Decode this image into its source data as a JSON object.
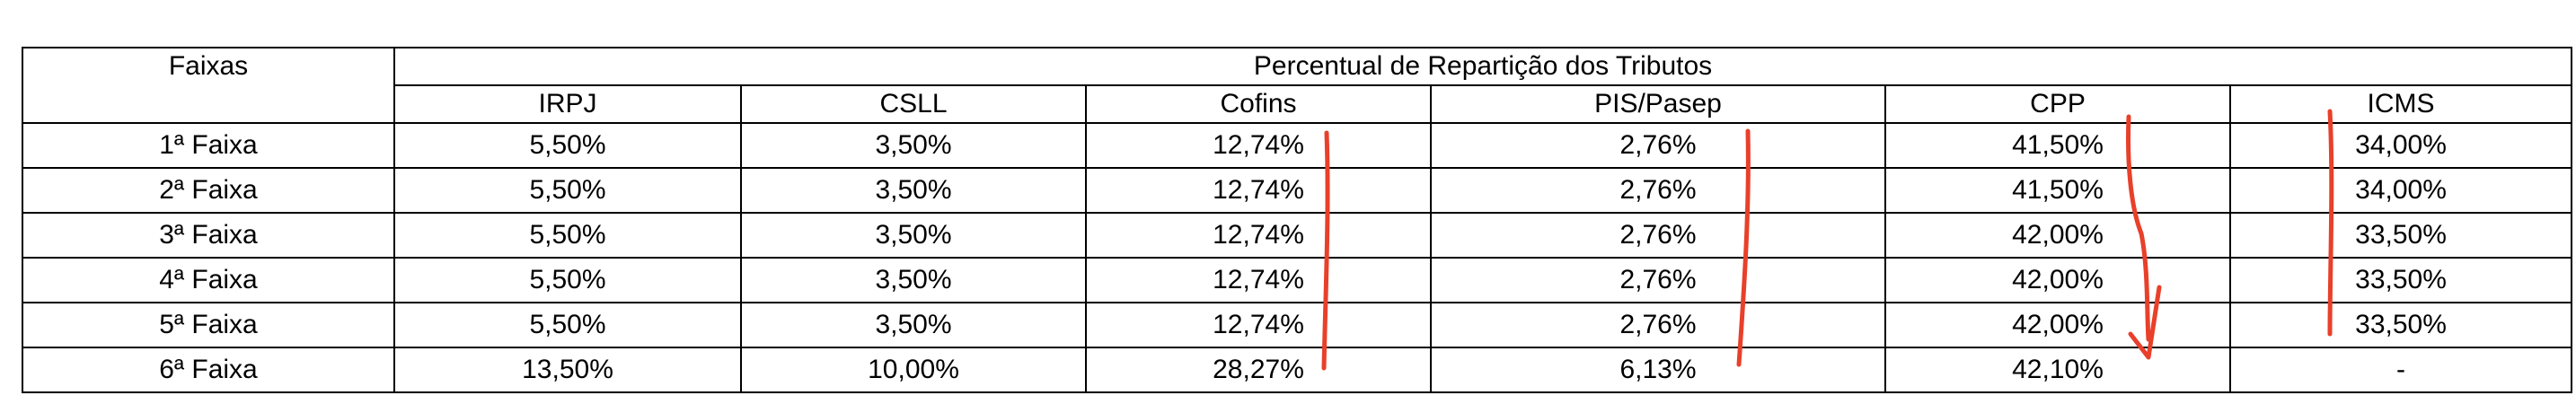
{
  "table": {
    "row_header": "Faixas",
    "group_header": "Percentual de Repartição dos Tributos",
    "columns": [
      "IRPJ",
      "CSLL",
      "Cofins",
      "PIS/Pasep",
      "CPP",
      "ICMS"
    ],
    "rows": [
      {
        "label": "1ª Faixa",
        "values": [
          "5,50%",
          "3,50%",
          "12,74%",
          "2,76%",
          "41,50%",
          "34,00%"
        ]
      },
      {
        "label": "2ª Faixa",
        "values": [
          "5,50%",
          "3,50%",
          "12,74%",
          "2,76%",
          "41,50%",
          "34,00%"
        ]
      },
      {
        "label": "3ª Faixa",
        "values": [
          "5,50%",
          "3,50%",
          "12,74%",
          "2,76%",
          "42,00%",
          "33,50%"
        ]
      },
      {
        "label": "4ª Faixa",
        "values": [
          "5,50%",
          "3,50%",
          "12,74%",
          "2,76%",
          "42,00%",
          "33,50%"
        ]
      },
      {
        "label": "5ª Faixa",
        "values": [
          "5,50%",
          "3,50%",
          "12,74%",
          "2,76%",
          "42,00%",
          "33,50%"
        ]
      },
      {
        "label": "6ª Faixa",
        "values": [
          "13,50%",
          "10,00%",
          "28,27%",
          "6,13%",
          "42,10%",
          "-"
        ]
      }
    ]
  },
  "annotations": {
    "pen_color": "#e8402a"
  }
}
